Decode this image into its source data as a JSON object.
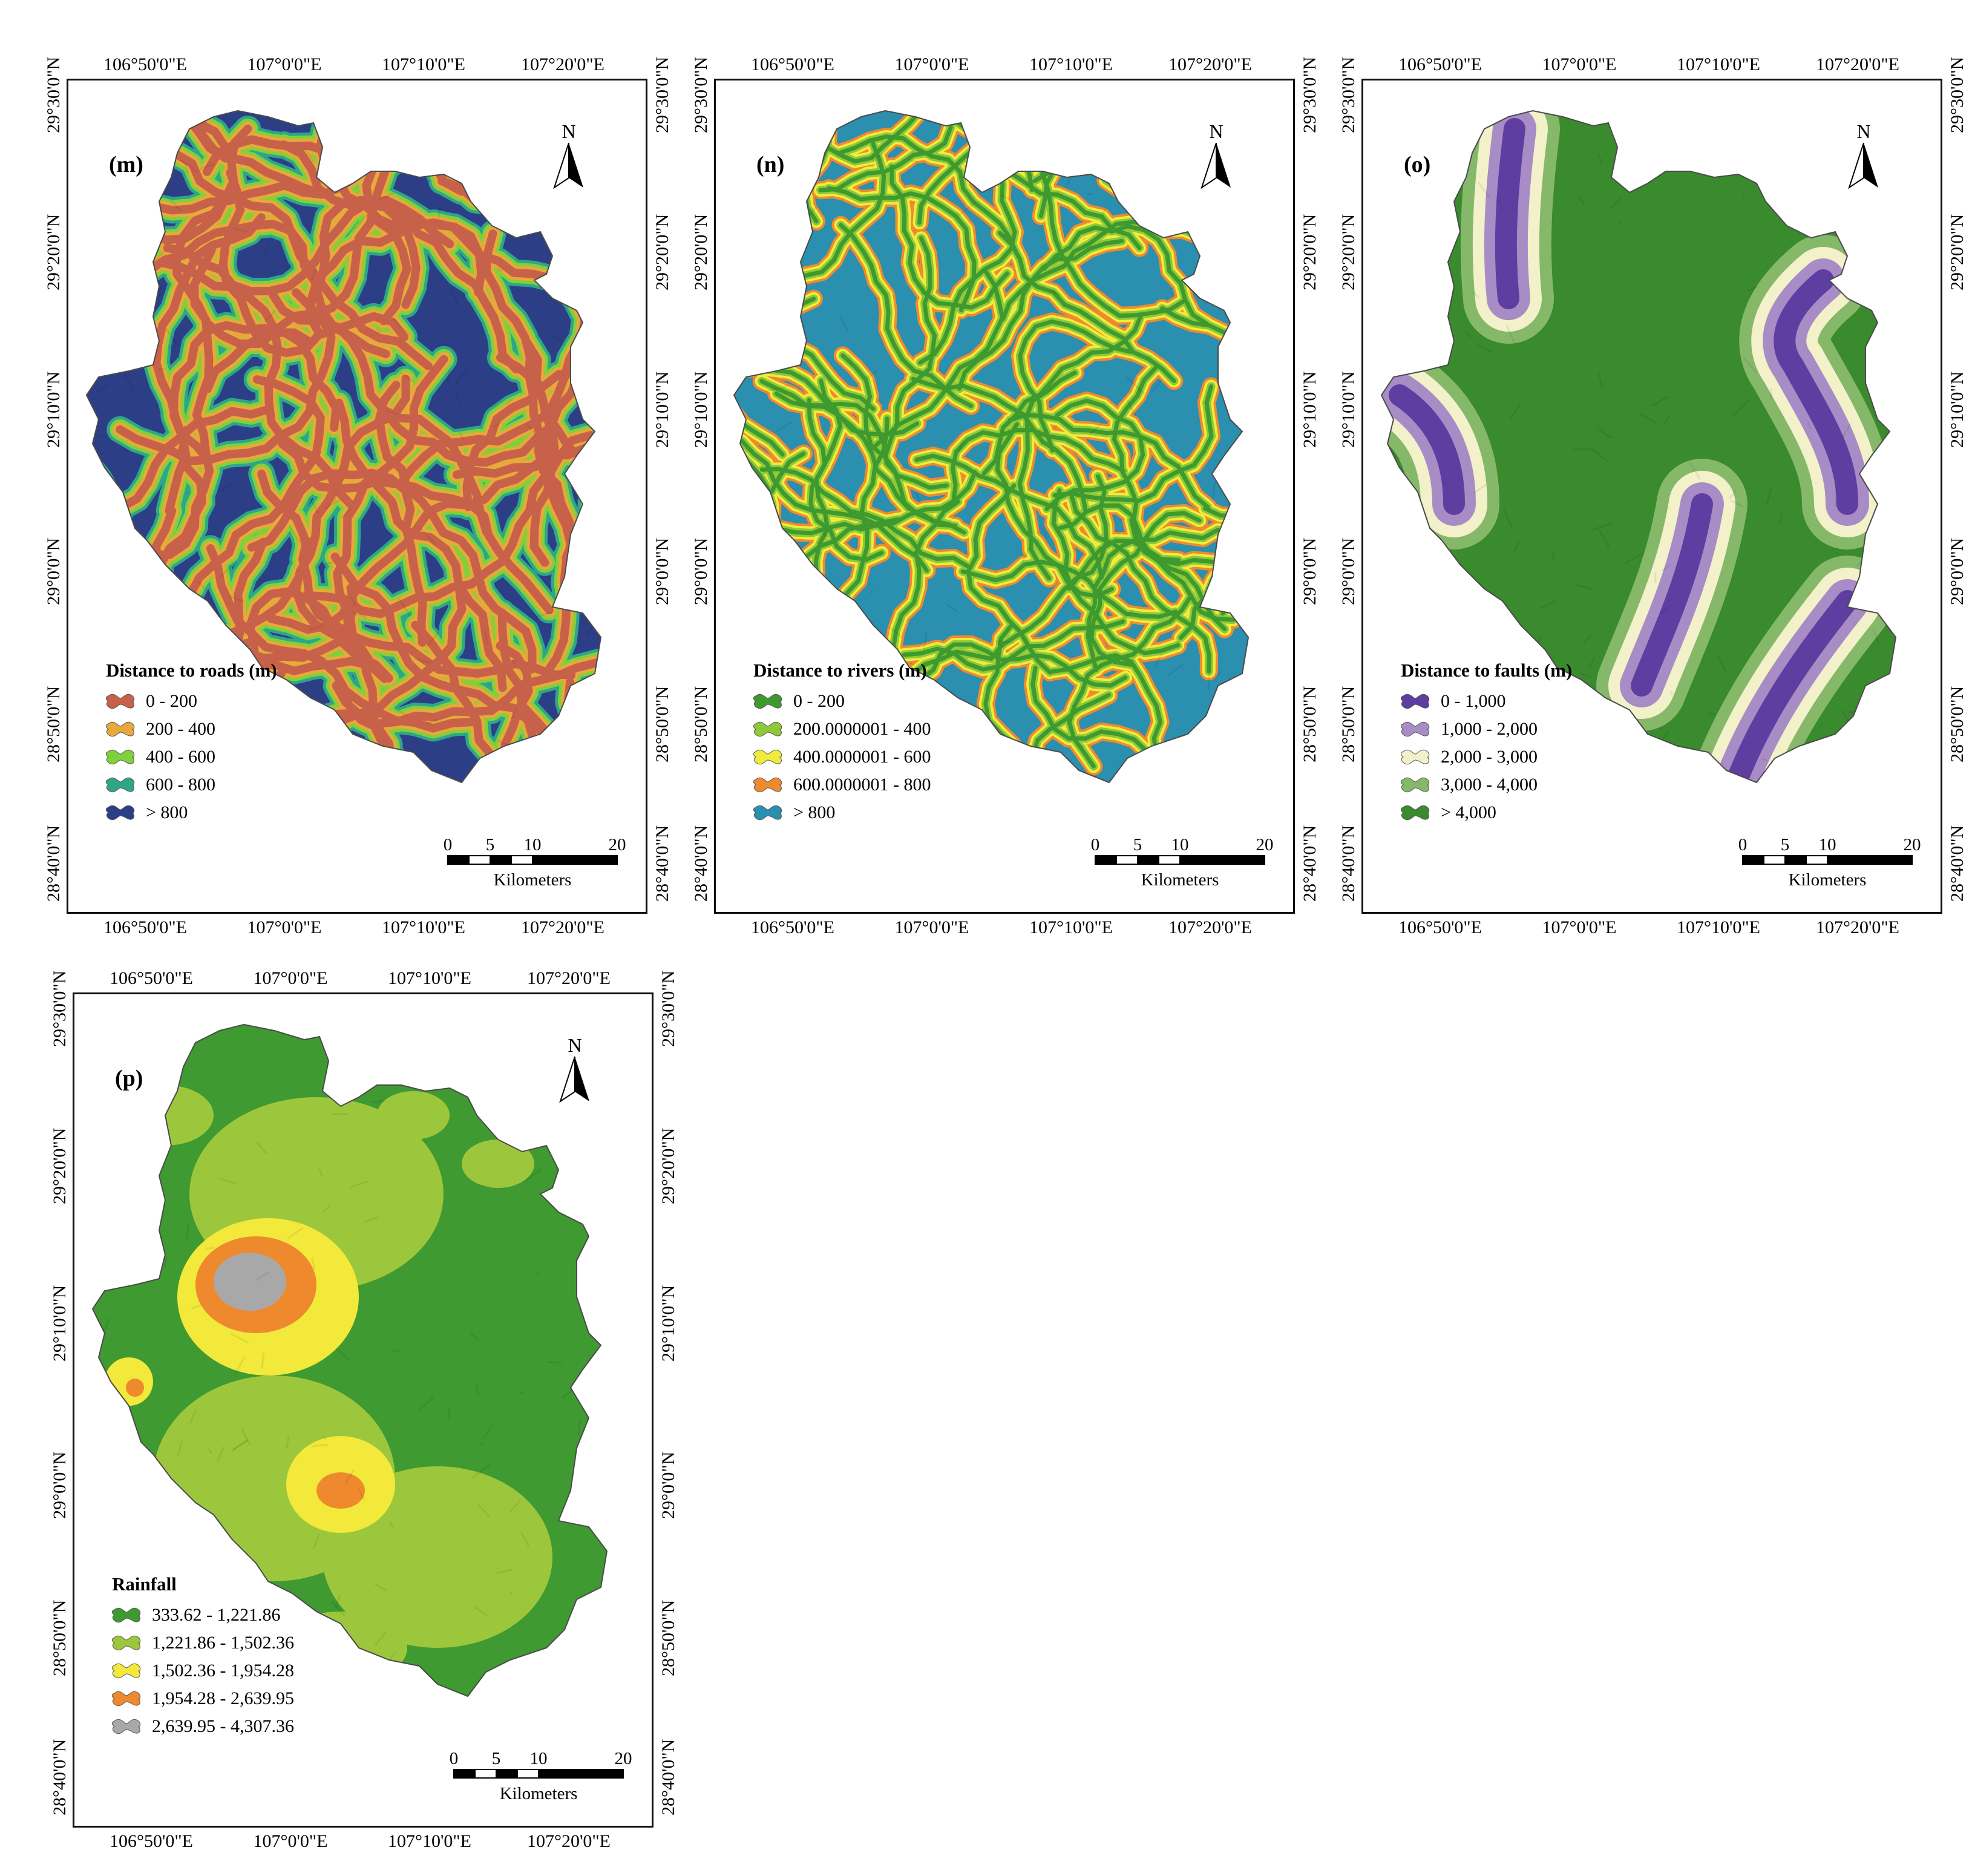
{
  "common": {
    "lon_ticks": [
      "106°50'0\"E",
      "107°0'0\"E",
      "107°10'0\"E",
      "107°20'0\"E"
    ],
    "lat_ticks": [
      "29°30'0\"N",
      "29°20'0\"N",
      "29°10'0\"N",
      "29°0'0\"N",
      "28°50'0\"N",
      "28°40'0\"N"
    ],
    "north_label": "N",
    "scale_labels": [
      "0",
      "5",
      "10",
      "20"
    ],
    "scale_unit": "Kilometers"
  },
  "panels": [
    {
      "id": "m",
      "label": "(m)",
      "legend_title": "Distance to roads (m)",
      "legend": [
        {
          "label": "0 - 200",
          "color": "#c8614a"
        },
        {
          "label": "200 - 400",
          "color": "#e6a93a"
        },
        {
          "label": "400 - 600",
          "color": "#7fd13b"
        },
        {
          "label": "600 - 800",
          "color": "#2fa58a"
        },
        {
          "label": "> 800",
          "color": "#2c3f86"
        }
      ],
      "pattern": "roads"
    },
    {
      "id": "n",
      "label": "(n)",
      "legend_title": "Distance to rivers (m)",
      "legend": [
        {
          "label": "0 - 200",
          "color": "#3e9a2e"
        },
        {
          "label": "200.0000001 - 400",
          "color": "#8fc93a"
        },
        {
          "label": "400.0000001 - 600",
          "color": "#f1ec3c"
        },
        {
          "label": "600.0000001 - 800",
          "color": "#ef8a2e"
        },
        {
          "label": "> 800",
          "color": "#2b8fb0"
        }
      ],
      "pattern": "rivers"
    },
    {
      "id": "o",
      "label": "(o)",
      "legend_title": "Distance to faults (m)",
      "legend": [
        {
          "label": "0 - 1,000",
          "color": "#5e3ea0"
        },
        {
          "label": "1,000 - 2,000",
          "color": "#a88cc6"
        },
        {
          "label": "2,000 - 3,000",
          "color": "#f3f1c9"
        },
        {
          "label": "3,000 - 4,000",
          "color": "#86b86a"
        },
        {
          "label": "> 4,000",
          "color": "#3a8a2e"
        }
      ],
      "pattern": "faults"
    },
    {
      "id": "p",
      "label": "(p)",
      "legend_title": "Rainfall",
      "legend": [
        {
          "label": "333.62 - 1,221.86",
          "color": "#3f9a31"
        },
        {
          "label": "1,221.86 - 1,502.36",
          "color": "#9cc73d"
        },
        {
          "label": "1,502.36 - 1,954.28",
          "color": "#f3e93b"
        },
        {
          "label": "1,954.28 - 2,639.95",
          "color": "#ee8a2d"
        },
        {
          "label": "2,639.95 - 4,307.36",
          "color": "#a8a8a8"
        }
      ],
      "pattern": "rainfall"
    }
  ]
}
